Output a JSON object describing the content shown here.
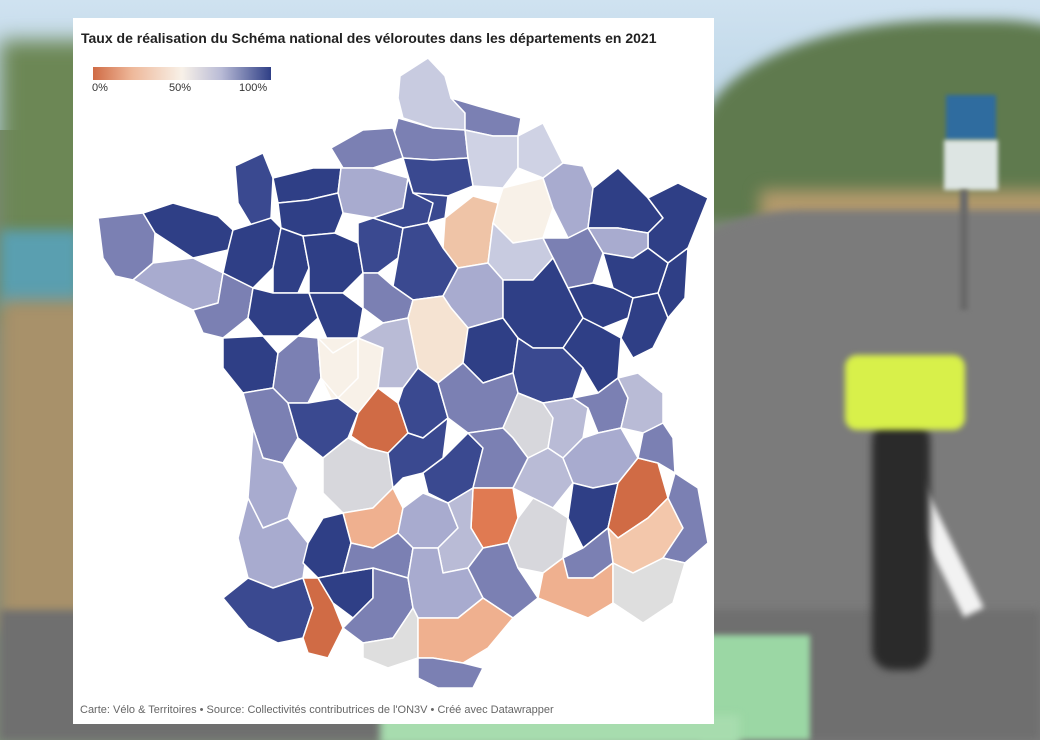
{
  "title": "Taux de réalisation du Schéma national des véloroutes dans les départements en 2021",
  "legend": {
    "min_label": "0%",
    "mid_label": "50%",
    "max_label": "100%"
  },
  "footer": "Carte: Vélo & Territoires • Source: Collectivités contributrices de l'ON3V • Créé avec Datawrapper",
  "colors": {
    "low": "#d06b45",
    "mid": "#f8f1e8",
    "high": "#2f3f86"
  }
}
